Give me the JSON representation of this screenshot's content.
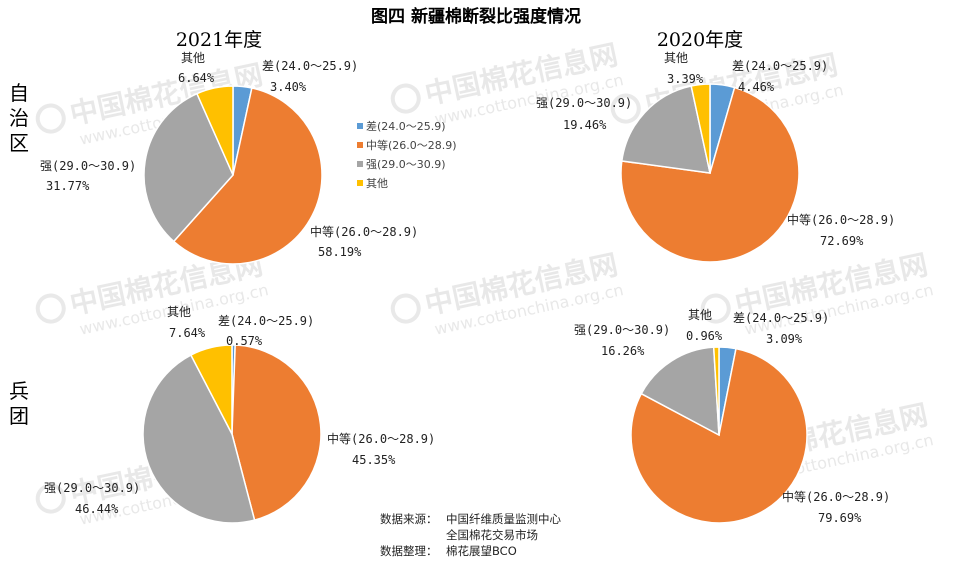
{
  "title": "图四  新疆棉断裂比强度情况",
  "row_labels": [
    "自治区",
    "兵团"
  ],
  "watermark": {
    "brand": "中国棉花信息网",
    "url": "www.cottonchina.org.cn"
  },
  "legend": {
    "items": [
      "差(24.0～25.9)",
      "中等(26.0～28.9)",
      "强(29.0～30.9)",
      "其他"
    ],
    "colors": [
      "#5B9BD5",
      "#ED7D31",
      "#A5A5A5",
      "#FFC000"
    ]
  },
  "source": {
    "line1_label": "数据来源：",
    "line1_value": "中国纤维质量监测中心",
    "line2_value": "全国棉花交易市场",
    "line3_label": "数据整理：",
    "line3_value": "棉花展望BCO"
  },
  "chart_data": [
    {
      "type": "pie",
      "title": "2021年度",
      "row": "自治区",
      "categories": [
        "差(24.0～25.9)",
        "中等(26.0～28.9)",
        "强(29.0～30.9)",
        "其他"
      ],
      "labels": [
        "差(24.0～25.9)",
        "中等(26.0～28.9)",
        "强(29.0～30.9)",
        "其他"
      ],
      "values": [
        3.4,
        58.19,
        31.77,
        6.64
      ],
      "value_labels": [
        "3.40%",
        "58.19%",
        "31.77%",
        "6.64%"
      ],
      "colors": [
        "#5B9BD5",
        "#ED7D31",
        "#A5A5A5",
        "#FFC000"
      ]
    },
    {
      "type": "pie",
      "title": "2020年度",
      "row": "自治区",
      "categories": [
        "差(24.0～25.9)",
        "中等(26.0～28.9)",
        "强(29.0～30.9)",
        "其他"
      ],
      "labels": [
        "差(24.0～25.9)",
        "中等(26.0～28.9)",
        "强(29.0～30.9)",
        "其他"
      ],
      "values": [
        4.46,
        72.69,
        19.46,
        3.39
      ],
      "value_labels": [
        "4.46%",
        "72.69%",
        "19.46%",
        "3.39%"
      ],
      "colors": [
        "#5B9BD5",
        "#ED7D31",
        "#A5A5A5",
        "#FFC000"
      ]
    },
    {
      "type": "pie",
      "title": "",
      "row": "兵团",
      "categories": [
        "差(24.0～25.9)",
        "中等(26.0～28.9)",
        "强(29.0～30.9)",
        "其他"
      ],
      "labels": [
        "差(24.0～25.9)",
        "中等(26.0～28.9)",
        "强(29.0～30.9)",
        "其他"
      ],
      "values": [
        0.57,
        45.35,
        46.44,
        7.64
      ],
      "value_labels": [
        "0.57%",
        "45.35%",
        "46.44%",
        "7.64%"
      ],
      "colors": [
        "#5B9BD5",
        "#ED7D31",
        "#A5A5A5",
        "#FFC000"
      ]
    },
    {
      "type": "pie",
      "title": "",
      "row": "兵团",
      "categories": [
        "差(24.0～25.9)",
        "中等(26.0～28.9)",
        "强(29.0～30.9)",
        "其他"
      ],
      "labels": [
        "差(24.0～25.9)",
        "中等(26.0～28.9)",
        "强(29.0～30.9)",
        "其他"
      ],
      "values": [
        3.09,
        79.69,
        16.26,
        0.96
      ],
      "value_labels": [
        "3.09%",
        "79.69%",
        "16.26%",
        "0.96%"
      ],
      "colors": [
        "#5B9BD5",
        "#ED7D31",
        "#A5A5A5",
        "#FFC000"
      ]
    }
  ]
}
